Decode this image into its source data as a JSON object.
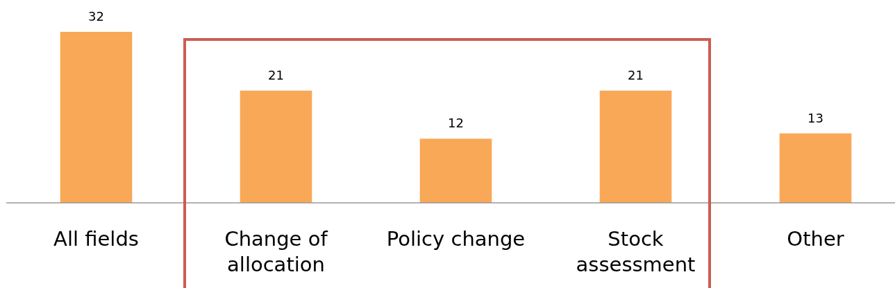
{
  "chart_data": {
    "type": "bar",
    "categories": [
      "All fields",
      "Change of allocation",
      "Policy change",
      "Stock assessment",
      "Other"
    ],
    "values": [
      32,
      21,
      12,
      21,
      13
    ],
    "color": "#f9a857",
    "data_labels": true
  }
}
